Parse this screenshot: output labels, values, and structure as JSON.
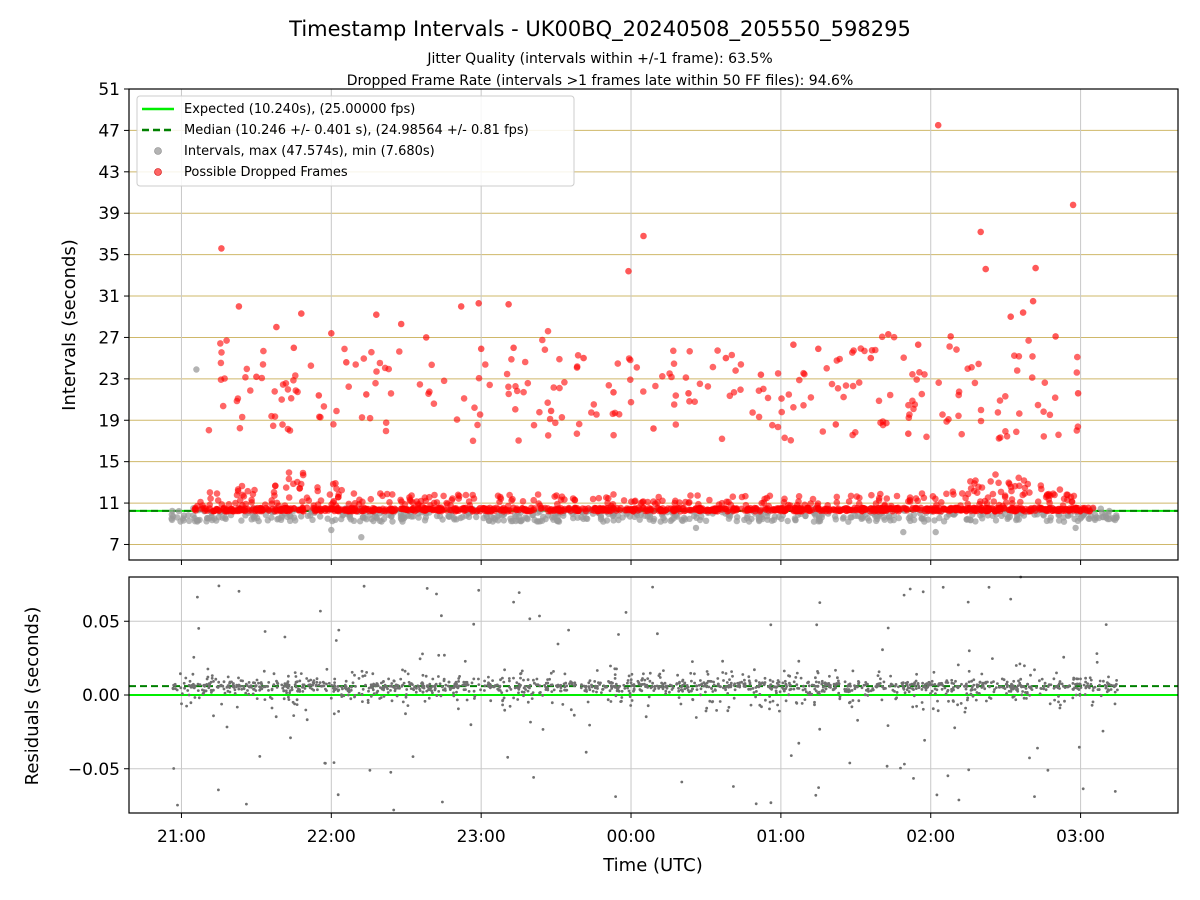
{
  "title": "Timestamp Intervals - UK00BQ_20240508_205550_598295",
  "subtitle_lines": [
    "Jitter Quality (intervals within +/-1 frame): 63.5%",
    "Dropped Frame Rate (intervals >1 frames late within 50 FF files): 94.6%"
  ],
  "colors": {
    "expected": "#00ee00",
    "median": "#008000",
    "intervals": "#999999",
    "dropped": "#ff0000",
    "residuals": "#707070",
    "hgrid_top": "#cfb86a",
    "grid": "#c8c8c8"
  },
  "chart_data": [
    {
      "type": "scatter",
      "panel": "intervals",
      "ylabel": "Intervals (seconds)",
      "xlabel": "",
      "x_unit": "Time (UTC)",
      "xlim": [
        "20:39",
        "03:39"
      ],
      "ylim": [
        5.5,
        51
      ],
      "yticks": [
        7,
        11,
        15,
        19,
        23,
        27,
        31,
        35,
        39,
        43,
        47,
        51
      ],
      "xticks": [
        "21:00",
        "22:00",
        "23:00",
        "00:00",
        "01:00",
        "02:00",
        "03:00"
      ],
      "grid": true,
      "legend": "top-left",
      "legend_entries": [
        "Expected (10.240s), (25.00000 fps)",
        "Median (10.246 +/- 0.401 s), (24.98564 +/- 0.81 fps)",
        "Intervals, max (47.574s), min (7.680s)",
        "Possible Dropped Frames"
      ],
      "expected_line": 10.24,
      "median_line": 10.246,
      "interval_range": {
        "min": 7.68,
        "max": 47.574
      },
      "time_span": {
        "start": "20:56",
        "end": "03:15",
        "dense_dropped_start": "21:05",
        "dense_dropped_end": "03:05"
      },
      "dropped_scatter": [
        {
          "t": "21:16",
          "y": 35.6
        },
        {
          "t": "21:23",
          "y": 30.0
        },
        {
          "t": "21:30",
          "y": 23.2
        },
        {
          "t": "21:38",
          "y": 28.0
        },
        {
          "t": "21:45",
          "y": 26.0
        },
        {
          "t": "21:48",
          "y": 29.3
        },
        {
          "t": "21:55",
          "y": 21.4
        },
        {
          "t": "22:00",
          "y": 27.4
        },
        {
          "t": "22:06",
          "y": 24.6
        },
        {
          "t": "22:14",
          "y": 21.5
        },
        {
          "t": "22:18",
          "y": 29.2
        },
        {
          "t": "22:28",
          "y": 28.3
        },
        {
          "t": "22:38",
          "y": 27.0
        },
        {
          "t": "22:52",
          "y": 30.0
        },
        {
          "t": "22:59",
          "y": 30.3
        },
        {
          "t": "23:00",
          "y": 25.9
        },
        {
          "t": "23:11",
          "y": 30.2
        },
        {
          "t": "23:13",
          "y": 26.0
        },
        {
          "t": "23:28",
          "y": 19.9
        },
        {
          "t": "23:41",
          "y": 25.0
        },
        {
          "t": "23:53",
          "y": 21.7
        },
        {
          "t": "23:59",
          "y": 33.4
        },
        {
          "t": "00:05",
          "y": 36.8
        },
        {
          "t": "00:09",
          "y": 18.2
        },
        {
          "t": "00:23",
          "y": 21.6
        },
        {
          "t": "00:38",
          "y": 25.0
        },
        {
          "t": "00:52",
          "y": 23.4
        },
        {
          "t": "01:05",
          "y": 26.3
        },
        {
          "t": "01:15",
          "y": 25.9
        },
        {
          "t": "01:22",
          "y": 18.6
        },
        {
          "t": "01:36",
          "y": 25.0
        },
        {
          "t": "01:43",
          "y": 27.3
        },
        {
          "t": "01:51",
          "y": 17.7
        },
        {
          "t": "01:55",
          "y": 26.3
        },
        {
          "t": "02:03",
          "y": 47.5
        },
        {
          "t": "02:08",
          "y": 27.1
        },
        {
          "t": "02:20",
          "y": 37.2
        },
        {
          "t": "02:22",
          "y": 33.6
        },
        {
          "t": "02:32",
          "y": 29.0
        },
        {
          "t": "02:37",
          "y": 29.4
        },
        {
          "t": "02:41",
          "y": 30.5
        },
        {
          "t": "02:42",
          "y": 33.7
        },
        {
          "t": "02:50",
          "y": 27.1
        },
        {
          "t": "02:57",
          "y": 39.8
        },
        {
          "t": "02:59",
          "y": 21.6
        }
      ],
      "interval_outliers": [
        {
          "t": "21:06",
          "y": 23.9
        },
        {
          "t": "22:00",
          "y": 8.4
        },
        {
          "t": "22:12",
          "y": 7.7
        },
        {
          "t": "00:26",
          "y": 8.6
        },
        {
          "t": "01:49",
          "y": 8.2
        },
        {
          "t": "02:02",
          "y": 8.2
        },
        {
          "t": "02:58",
          "y": 8.6
        }
      ]
    },
    {
      "type": "scatter",
      "panel": "residuals",
      "ylabel": "Residuals (seconds)",
      "xlabel": "Time (UTC)",
      "xlim": [
        "20:39",
        "03:39"
      ],
      "ylim": [
        -0.08,
        0.08
      ],
      "yticks": [
        "−0.05",
        "0.00",
        "0.05"
      ],
      "ytick_values": [
        -0.05,
        0.0,
        0.05
      ],
      "xticks": [
        "21:00",
        "22:00",
        "23:00",
        "00:00",
        "01:00",
        "02:00",
        "03:00"
      ],
      "grid": true,
      "zero_line": 0.0,
      "median_offset_line": 0.006,
      "residual_spread": {
        "core_min": -0.02,
        "core_max": 0.02,
        "outlier_min": -0.08,
        "outlier_max": 0.08
      },
      "residual_outliers": [
        {
          "t": "21:15",
          "y": 0.074
        },
        {
          "t": "21:26",
          "y": -0.074
        },
        {
          "t": "22:03",
          "y": 0.044
        },
        {
          "t": "22:25",
          "y": -0.078
        },
        {
          "t": "22:59",
          "y": 0.071
        },
        {
          "t": "23:13",
          "y": 0.063
        },
        {
          "t": "23:35",
          "y": 0.044
        },
        {
          "t": "23:55",
          "y": 0.041
        },
        {
          "t": "23:58",
          "y": 0.056
        },
        {
          "t": "00:41",
          "y": -0.062
        },
        {
          "t": "00:56",
          "y": -0.073
        },
        {
          "t": "01:14",
          "y": -0.068
        },
        {
          "t": "01:57",
          "y": 0.07
        },
        {
          "t": "02:05",
          "y": 0.073
        },
        {
          "t": "02:15",
          "y": 0.063
        },
        {
          "t": "02:32",
          "y": 0.065
        },
        {
          "t": "02:36",
          "y": 0.08
        }
      ]
    }
  ]
}
